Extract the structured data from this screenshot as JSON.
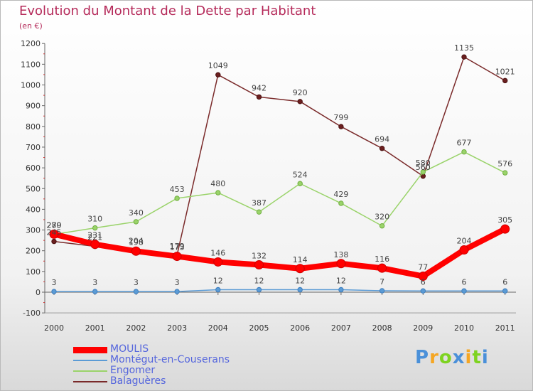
{
  "chart_data": {
    "type": "line",
    "title": "Evolution du Montant de la Dette par Habitant",
    "subtitle": "(en €)",
    "categories": [
      "2000",
      "2001",
      "2002",
      "2003",
      "2004",
      "2005",
      "2006",
      "2007",
      "2008",
      "2009",
      "2010",
      "2011"
    ],
    "y_ticks": [
      "-100",
      "0",
      "100",
      "200",
      "300",
      "400",
      "500",
      "600",
      "700",
      "800",
      "900",
      "1000",
      "1100",
      "1200"
    ],
    "ylim": [
      -100,
      1200
    ],
    "grid": false,
    "legend_position": "bottom-left",
    "series": [
      {
        "name": "MOULIS",
        "color": "#ff0000",
        "values": [
          280,
          231,
          198,
          173,
          146,
          132,
          114,
          138,
          116,
          77,
          204,
          305
        ],
        "labels": [
          "280",
          "231",
          "198",
          "173",
          "146",
          "132",
          "114",
          "138",
          "116",
          "77",
          "204",
          "305"
        ]
      },
      {
        "name": "Montégut-en-Couserans",
        "color": "#5b9bd5",
        "values": [
          3,
          3,
          3,
          3,
          12,
          12,
          12,
          12,
          7,
          6,
          6,
          6
        ],
        "labels": [
          "3",
          "3",
          "3",
          "3",
          "12",
          "12",
          "12",
          "12",
          "7",
          "6",
          "6",
          "6"
        ]
      },
      {
        "name": "Engomer",
        "color": "#9ad36a",
        "values": [
          279,
          310,
          340,
          453,
          480,
          387,
          524,
          429,
          320,
          580,
          677,
          576
        ],
        "labels": [
          "279",
          "310",
          "340",
          "453",
          "480",
          "387",
          "524",
          "429",
          "320",
          "580",
          "677",
          "576"
        ]
      },
      {
        "name": "Balaguères",
        "color": "#7a2a2a",
        "values": [
          245,
          221,
          204,
          179,
          1049,
          942,
          920,
          799,
          694,
          560,
          1135,
          1021
        ],
        "labels": [
          "245",
          "221",
          "204",
          "179",
          "1049",
          "942",
          "920",
          "799",
          "694",
          "560",
          "1135",
          "1021"
        ]
      }
    ]
  },
  "brand": {
    "letters": [
      "P",
      "r",
      "o",
      "x",
      "i",
      "t",
      "i"
    ],
    "colors": [
      "#4a90d9",
      "#f5a623",
      "#7ed321",
      "#4a90d9",
      "#f5a623",
      "#7ed321",
      "#4a90d9"
    ]
  }
}
